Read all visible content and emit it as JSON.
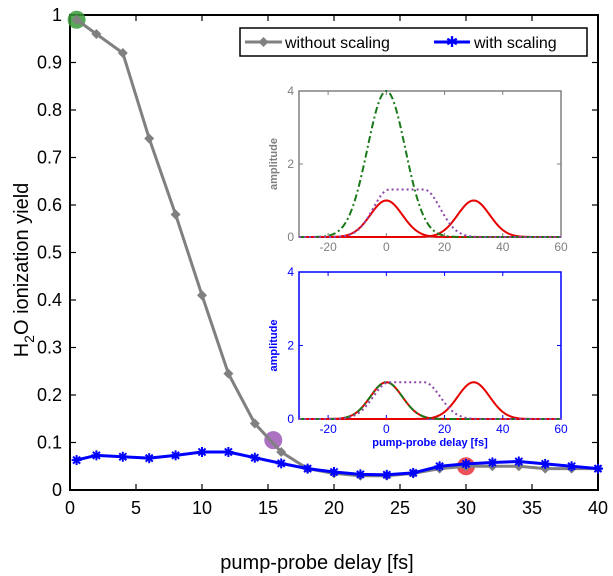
{
  "chart_data": {
    "type": "line",
    "xlabel": "pump-probe delay [fs]",
    "ylabel_main": "H",
    "ylabel_sub": "2",
    "ylabel_rest": "O ionization yield",
    "xlim": [
      0,
      40
    ],
    "ylim": [
      0,
      1
    ],
    "xticks": [
      0,
      5,
      10,
      15,
      20,
      25,
      30,
      35,
      40
    ],
    "yticks": [
      0,
      0.1,
      0.2,
      0.3,
      0.4,
      0.5,
      0.6,
      0.7,
      0.8,
      0.9,
      1
    ],
    "ytick_labels": [
      "0",
      "0.1",
      "0.2",
      "0.3",
      "0.4",
      "0.5",
      "0.6",
      "0.7",
      "0.8",
      "0.9",
      "1"
    ],
    "grid": false,
    "legend_position": "top-right",
    "series": [
      {
        "name": "without scaling",
        "color": "#808080",
        "marker": "diamond",
        "x": [
          0.5,
          2,
          4,
          6,
          8,
          10,
          12,
          14,
          16,
          18,
          20,
          22,
          24,
          26,
          28,
          30,
          32,
          34,
          36,
          38,
          40
        ],
        "y": [
          0.99,
          0.96,
          0.92,
          0.74,
          0.58,
          0.41,
          0.245,
          0.14,
          0.08,
          0.045,
          0.035,
          0.03,
          0.03,
          0.035,
          0.045,
          0.05,
          0.05,
          0.05,
          0.045,
          0.045,
          0.045
        ]
      },
      {
        "name": "with scaling",
        "color": "#0000ff",
        "marker": "star",
        "x": [
          0.5,
          2,
          4,
          6,
          8,
          10,
          12,
          14,
          16,
          18,
          20,
          22,
          24,
          26,
          28,
          30,
          32,
          34,
          36,
          38,
          40
        ],
        "y": [
          0.063,
          0.073,
          0.07,
          0.067,
          0.073,
          0.08,
          0.08,
          0.068,
          0.056,
          0.045,
          0.038,
          0.033,
          0.032,
          0.036,
          0.05,
          0.055,
          0.058,
          0.06,
          0.055,
          0.05,
          0.045
        ]
      }
    ],
    "highlight_points": [
      {
        "x": 0.5,
        "y": 0.99,
        "color": "#3a9a3a"
      },
      {
        "x": 15.4,
        "y": 0.105,
        "color": "#9b59b6"
      },
      {
        "x": 30,
        "y": 0.05,
        "color": "#e8333a"
      }
    ],
    "insets": [
      {
        "axis_color": "#808080",
        "ylabel": "amplitude",
        "xlabel": "",
        "xlim": [
          -30,
          60
        ],
        "ylim": [
          0,
          4
        ],
        "xticks": [
          -20,
          0,
          20,
          40,
          60
        ],
        "yticks": [
          0,
          2,
          4
        ],
        "curves": [
          {
            "style": "dashdot",
            "color": "#1a7a1a",
            "amp": 4,
            "center": 0,
            "sigma": 6.5
          },
          {
            "style": "dotted",
            "color": "#8e44ad",
            "type": "flat",
            "amp": 1.3,
            "center": 7,
            "halfwidth": 6,
            "sigma": 5.5
          },
          {
            "style": "solid",
            "color": "#e60000",
            "amp": 1,
            "center": 0,
            "sigma": 5.5
          },
          {
            "style": "solid",
            "color": "#e60000",
            "amp": 1,
            "center": 30,
            "sigma": 5.5
          }
        ]
      },
      {
        "axis_color": "#0000ff",
        "ylabel": "amplitude",
        "xlabel": "pump-probe delay [fs]",
        "xlim": [
          -30,
          60
        ],
        "ylim": [
          0,
          4
        ],
        "xticks": [
          -20,
          0,
          20,
          40,
          60
        ],
        "yticks": [
          0,
          2,
          4
        ],
        "curves": [
          {
            "style": "dashdot",
            "color": "#1a7a1a",
            "amp": 1,
            "center": 0,
            "sigma": 5.5
          },
          {
            "style": "dotted",
            "color": "#8e44ad",
            "type": "flat",
            "amp": 1,
            "center": 7,
            "halfwidth": 6,
            "sigma": 5.5
          },
          {
            "style": "solid",
            "color": "#e60000",
            "amp": 1,
            "center": 0,
            "sigma": 5.5
          },
          {
            "style": "solid",
            "color": "#e60000",
            "amp": 1,
            "center": 30,
            "sigma": 5.5
          }
        ]
      }
    ]
  }
}
